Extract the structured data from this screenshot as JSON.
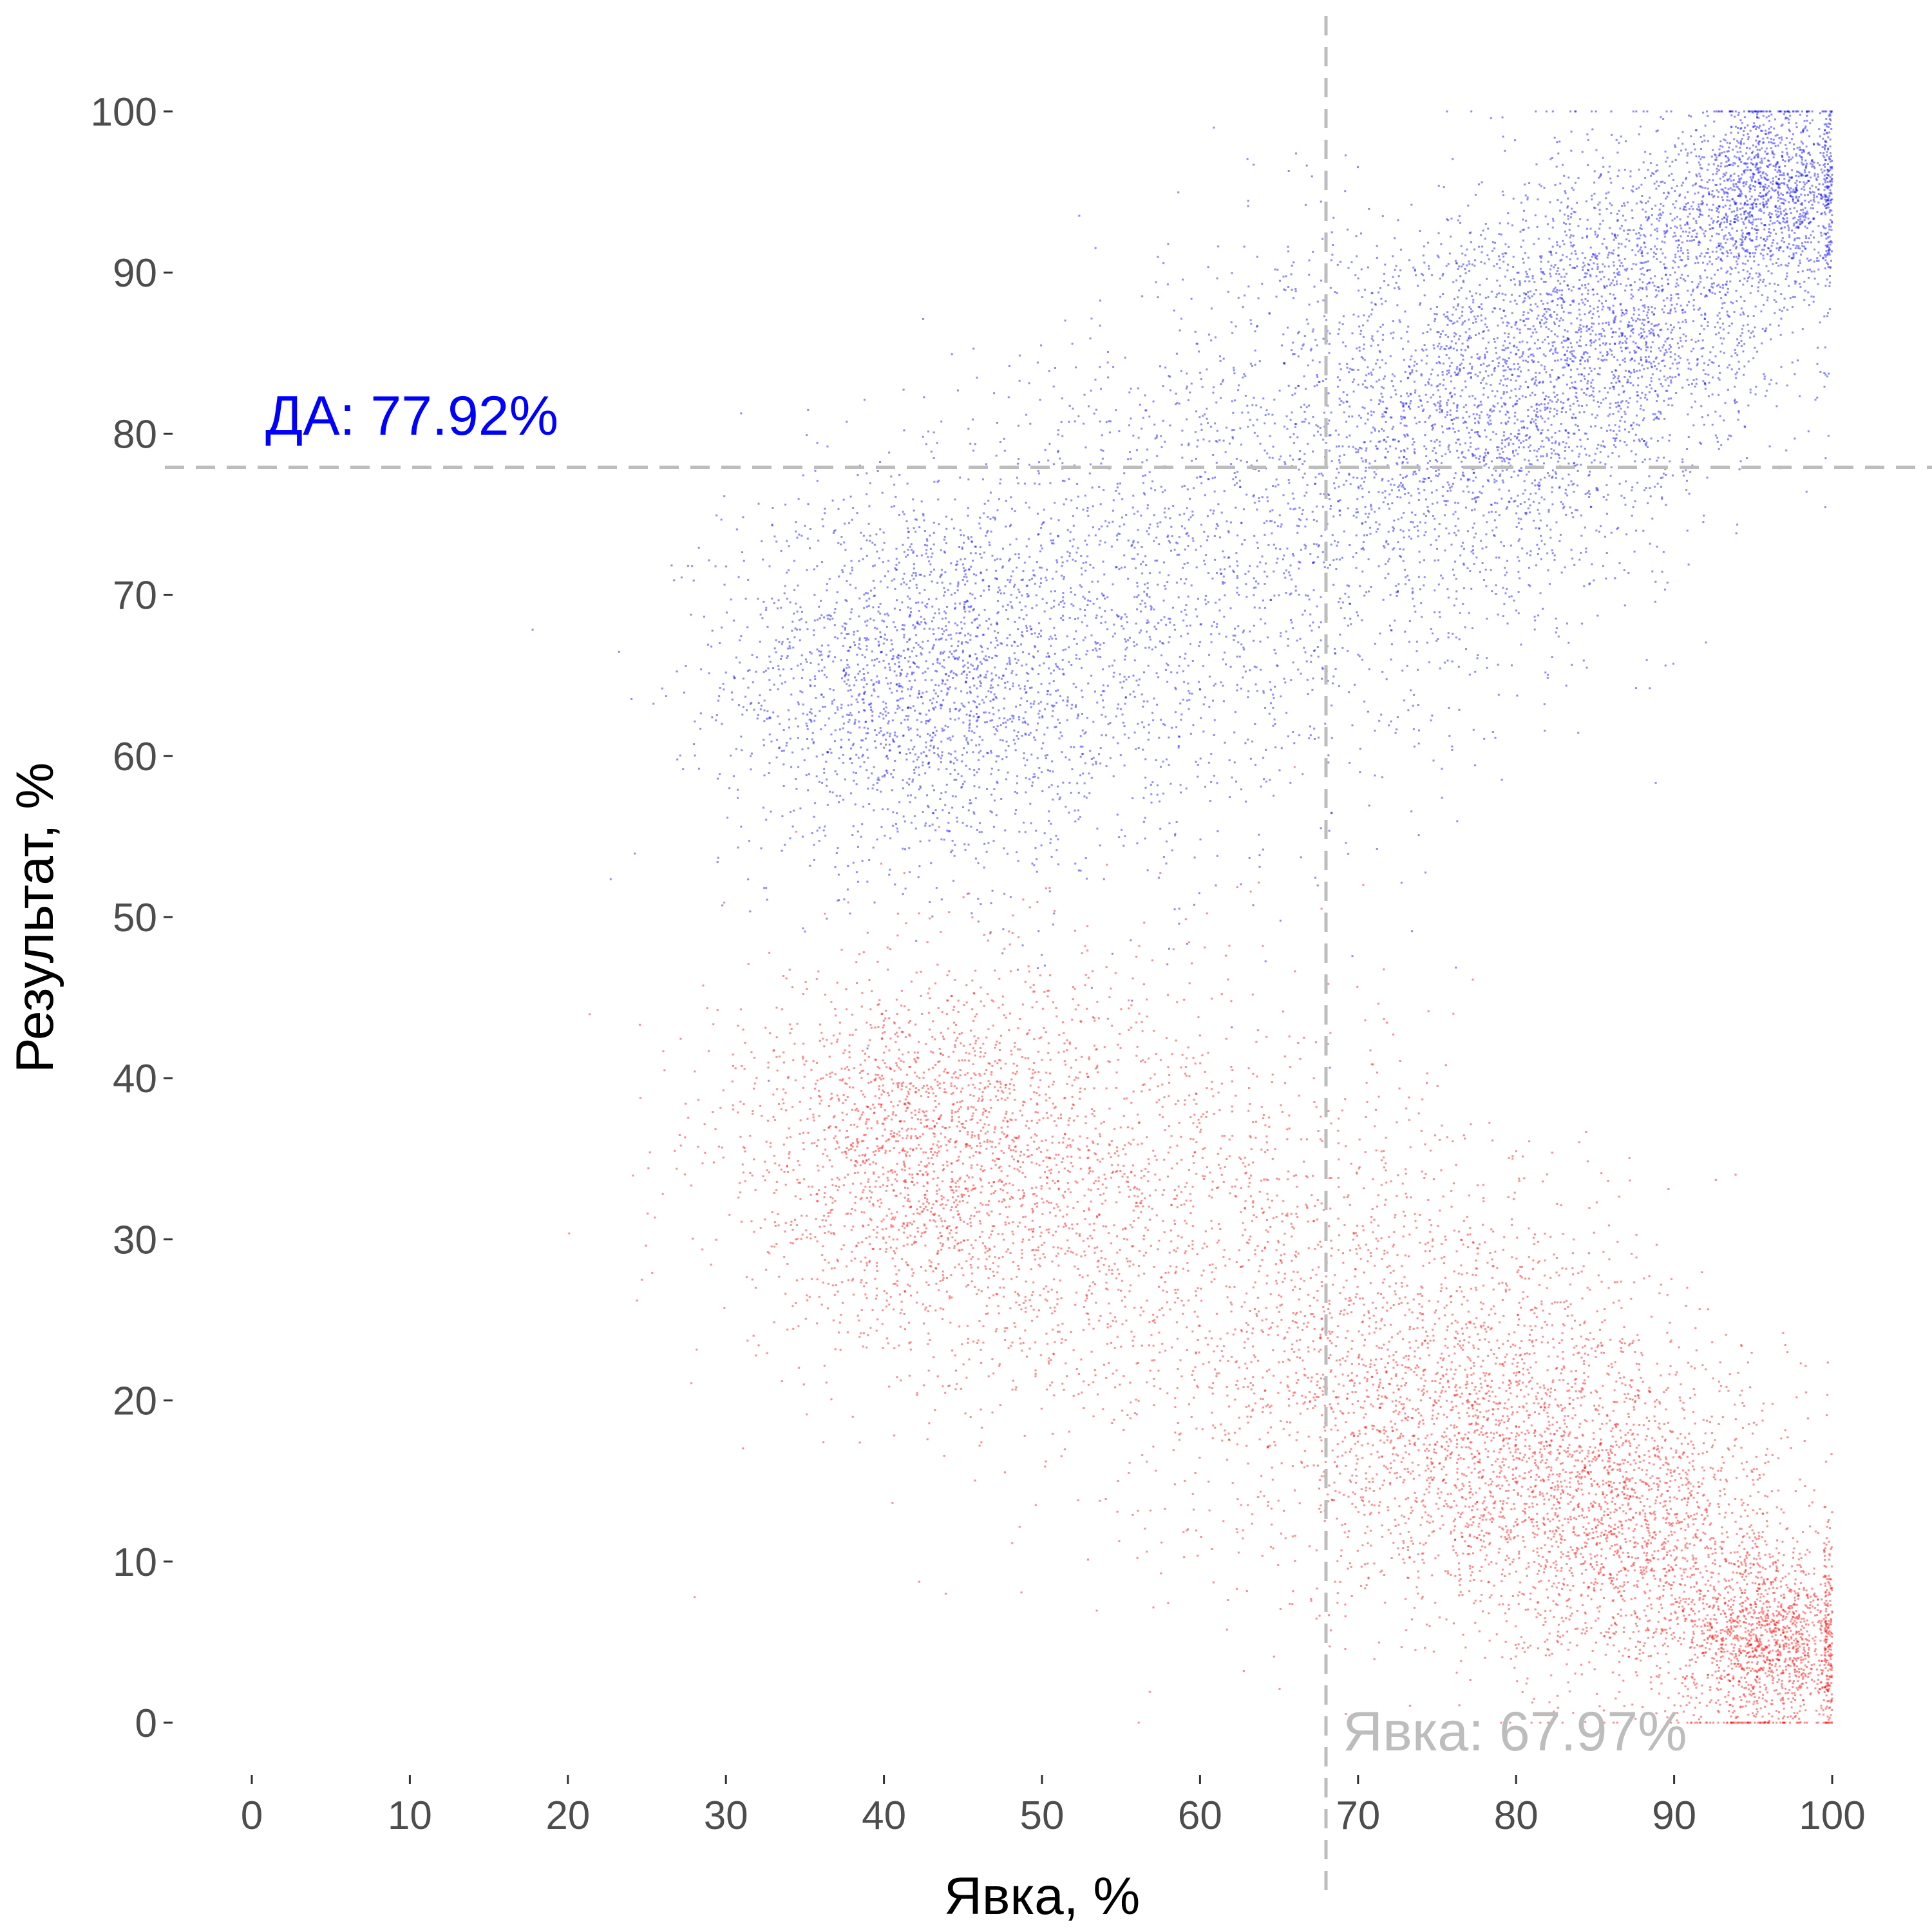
{
  "chart_data": {
    "type": "scatter",
    "xlabel": "Явка, %",
    "ylabel": "Результат, %",
    "xlim": [
      0,
      100
    ],
    "ylim": [
      0,
      100
    ],
    "x_ticks": [
      0,
      10,
      20,
      30,
      40,
      50,
      60,
      70,
      80,
      90,
      100
    ],
    "y_ticks": [
      0,
      10,
      20,
      30,
      40,
      50,
      60,
      70,
      80,
      90,
      100
    ],
    "grid": false,
    "series": [
      {
        "color": "#0000ff",
        "clusters": [
          {
            "cx": 42,
            "cy": 65,
            "sx": 6,
            "sy": 6,
            "weight": 0.22
          },
          {
            "cx": 55,
            "cy": 68,
            "sx": 8,
            "sy": 8,
            "weight": 0.12
          },
          {
            "cx": 68,
            "cy": 75,
            "sx": 8,
            "sy": 8,
            "weight": 0.12
          },
          {
            "cx": 78,
            "cy": 82,
            "sx": 6,
            "sy": 6,
            "weight": 0.2
          },
          {
            "cx": 88,
            "cy": 88,
            "sx": 5,
            "sy": 5,
            "weight": 0.18
          },
          {
            "cx": 96,
            "cy": 95,
            "sx": 3,
            "sy": 3,
            "weight": 0.16
          }
        ]
      },
      {
        "color": "#ff0000",
        "clusters": [
          {
            "cx": 42,
            "cy": 35,
            "sx": 6,
            "sy": 6,
            "weight": 0.22
          },
          {
            "cx": 55,
            "cy": 32,
            "sx": 8,
            "sy": 8,
            "weight": 0.12
          },
          {
            "cx": 68,
            "cy": 25,
            "sx": 8,
            "sy": 8,
            "weight": 0.12
          },
          {
            "cx": 78,
            "cy": 18,
            "sx": 6,
            "sy": 6,
            "weight": 0.2
          },
          {
            "cx": 88,
            "cy": 12,
            "sx": 5,
            "sy": 5,
            "weight": 0.18
          },
          {
            "cx": 96,
            "cy": 5,
            "sx": 3,
            "sy": 3,
            "weight": 0.16
          }
        ]
      }
    ],
    "reference_lines": {
      "turnout_x": 67.97,
      "result_y": 77.92,
      "color": "#bdbdbd",
      "style": "dashed"
    },
    "annotations": {
      "result": {
        "text": "ДА: 77.92%",
        "color": "#0000ff"
      },
      "turnout": {
        "text": "Явка: 67.97%",
        "color": "#bdbdbd"
      }
    }
  }
}
